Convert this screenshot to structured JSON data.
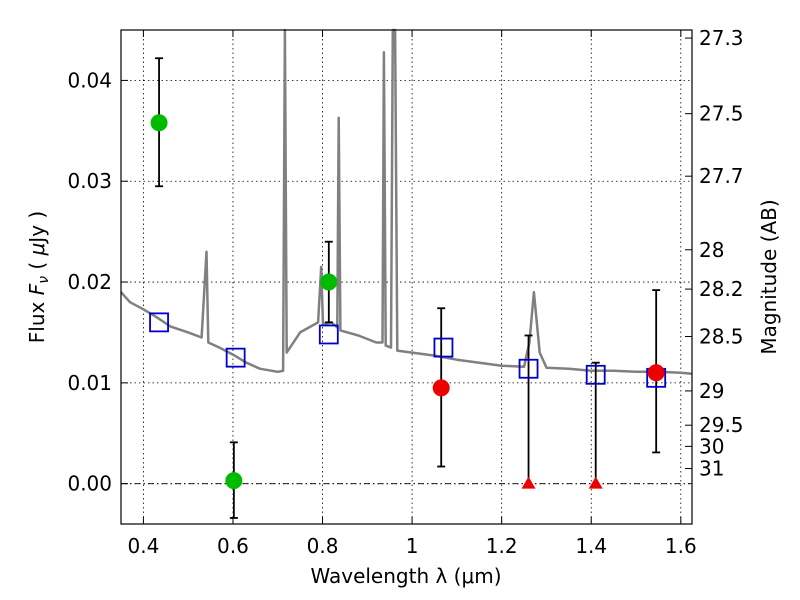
{
  "chart_data": {
    "type": "scatter",
    "xlabel": "Wavelength  λ (μm)",
    "ylabel": "Flux  F_ν  ( μJy )",
    "ylabel_right": "Magnitude (AB)",
    "xlim": [
      0.35,
      1.625
    ],
    "ylim": [
      -0.004,
      0.045
    ],
    "grid": true,
    "x_ticks": [
      0.4,
      0.6,
      0.8,
      1.0,
      1.2,
      1.4,
      1.6
    ],
    "x_tick_labels": [
      "0.4",
      "0.6",
      "0.8",
      "1",
      "1.2",
      "1.4",
      "1.6"
    ],
    "y_ticks": [
      0.0,
      0.01,
      0.02,
      0.03,
      0.04
    ],
    "y_tick_labels": [
      "0.00",
      "0.01",
      "0.02",
      "0.03",
      "0.04"
    ],
    "right_axis_ticks": [
      {
        "label": "27.3",
        "flux": 0.0442
      },
      {
        "label": "27.5",
        "flux": 0.0367
      },
      {
        "label": "27.7",
        "flux": 0.0305
      },
      {
        "label": "28",
        "flux": 0.0232
      },
      {
        "label": "28.2",
        "flux": 0.0193
      },
      {
        "label": "28.5",
        "flux": 0.0146
      },
      {
        "label": "29",
        "flux": 0.0092
      },
      {
        "label": "29.5",
        "flux": 0.0058
      },
      {
        "label": "30",
        "flux": 0.0037
      },
      {
        "label": "31",
        "flux": 0.0015
      }
    ],
    "zero_line": 0.0,
    "series": [
      {
        "type": "line",
        "color": "#808080",
        "points": [
          [
            0.35,
            0.019
          ],
          [
            0.37,
            0.018
          ],
          [
            0.4,
            0.0173
          ],
          [
            0.43,
            0.0165
          ],
          [
            0.46,
            0.0156
          ],
          [
            0.5,
            0.015
          ],
          [
            0.53,
            0.0145
          ],
          [
            0.541,
            0.023
          ],
          [
            0.545,
            0.014
          ],
          [
            0.57,
            0.0135
          ],
          [
            0.6,
            0.0128
          ],
          [
            0.63,
            0.012
          ],
          [
            0.66,
            0.0114
          ],
          [
            0.7,
            0.0111
          ],
          [
            0.712,
            0.0112
          ],
          [
            0.716,
            0.045
          ],
          [
            0.72,
            0.013
          ],
          [
            0.75,
            0.015
          ],
          [
            0.79,
            0.016
          ],
          [
            0.797,
            0.0215
          ],
          [
            0.801,
            0.0158
          ],
          [
            0.82,
            0.016
          ],
          [
            0.833,
            0.0155
          ],
          [
            0.836,
            0.0363
          ],
          [
            0.84,
            0.0152
          ],
          [
            0.88,
            0.0147
          ],
          [
            0.92,
            0.014
          ],
          [
            0.934,
            0.014
          ],
          [
            0.937,
            0.0428
          ],
          [
            0.941,
            0.0137
          ],
          [
            0.953,
            0.0135
          ],
          [
            0.957,
            0.045
          ],
          [
            0.962,
            0.045
          ],
          [
            0.967,
            0.0132
          ],
          [
            1.0,
            0.013
          ],
          [
            1.05,
            0.0127
          ],
          [
            1.1,
            0.0123
          ],
          [
            1.15,
            0.012
          ],
          [
            1.2,
            0.0117
          ],
          [
            1.25,
            0.0116
          ],
          [
            1.262,
            0.014
          ],
          [
            1.272,
            0.019
          ],
          [
            1.285,
            0.013
          ],
          [
            1.3,
            0.0115
          ],
          [
            1.35,
            0.0114
          ],
          [
            1.4,
            0.0112
          ],
          [
            1.45,
            0.0112
          ],
          [
            1.5,
            0.0111
          ],
          [
            1.55,
            0.0111
          ],
          [
            1.6,
            0.011
          ],
          [
            1.625,
            0.0109
          ]
        ]
      },
      {
        "type": "open-squares",
        "color": "#0000cc",
        "points": [
          [
            0.435,
            0.016
          ],
          [
            0.606,
            0.0125
          ],
          [
            0.814,
            0.0148
          ],
          [
            1.07,
            0.0135
          ],
          [
            1.26,
            0.0114
          ],
          [
            1.41,
            0.0108
          ],
          [
            1.545,
            0.0105
          ]
        ]
      },
      {
        "type": "filled-circles",
        "color": "#00bb00",
        "points": [
          {
            "x": 0.435,
            "y": 0.0358,
            "err_low": 0.0295,
            "err_high": 0.0422
          },
          {
            "x": 0.602,
            "y": 0.0003,
            "err_low": -0.0034,
            "err_high": 0.0041
          },
          {
            "x": 0.814,
            "y": 0.02,
            "err_low": 0.016,
            "err_high": 0.024
          }
        ]
      },
      {
        "type": "filled-circles",
        "color": "#ee0000",
        "points": [
          {
            "x": 1.065,
            "y": 0.0095,
            "err_low": 0.0017,
            "err_high": 0.0174
          },
          {
            "x": 1.545,
            "y": 0.011,
            "err_low": 0.0031,
            "err_high": 0.0192
          }
        ]
      },
      {
        "type": "upper-limit-triangles",
        "color": "#ee0000",
        "points": [
          {
            "x": 1.26,
            "y": 0.0,
            "err_high": 0.0147
          },
          {
            "x": 1.41,
            "y": 0.0,
            "err_high": 0.012
          }
        ]
      }
    ]
  }
}
